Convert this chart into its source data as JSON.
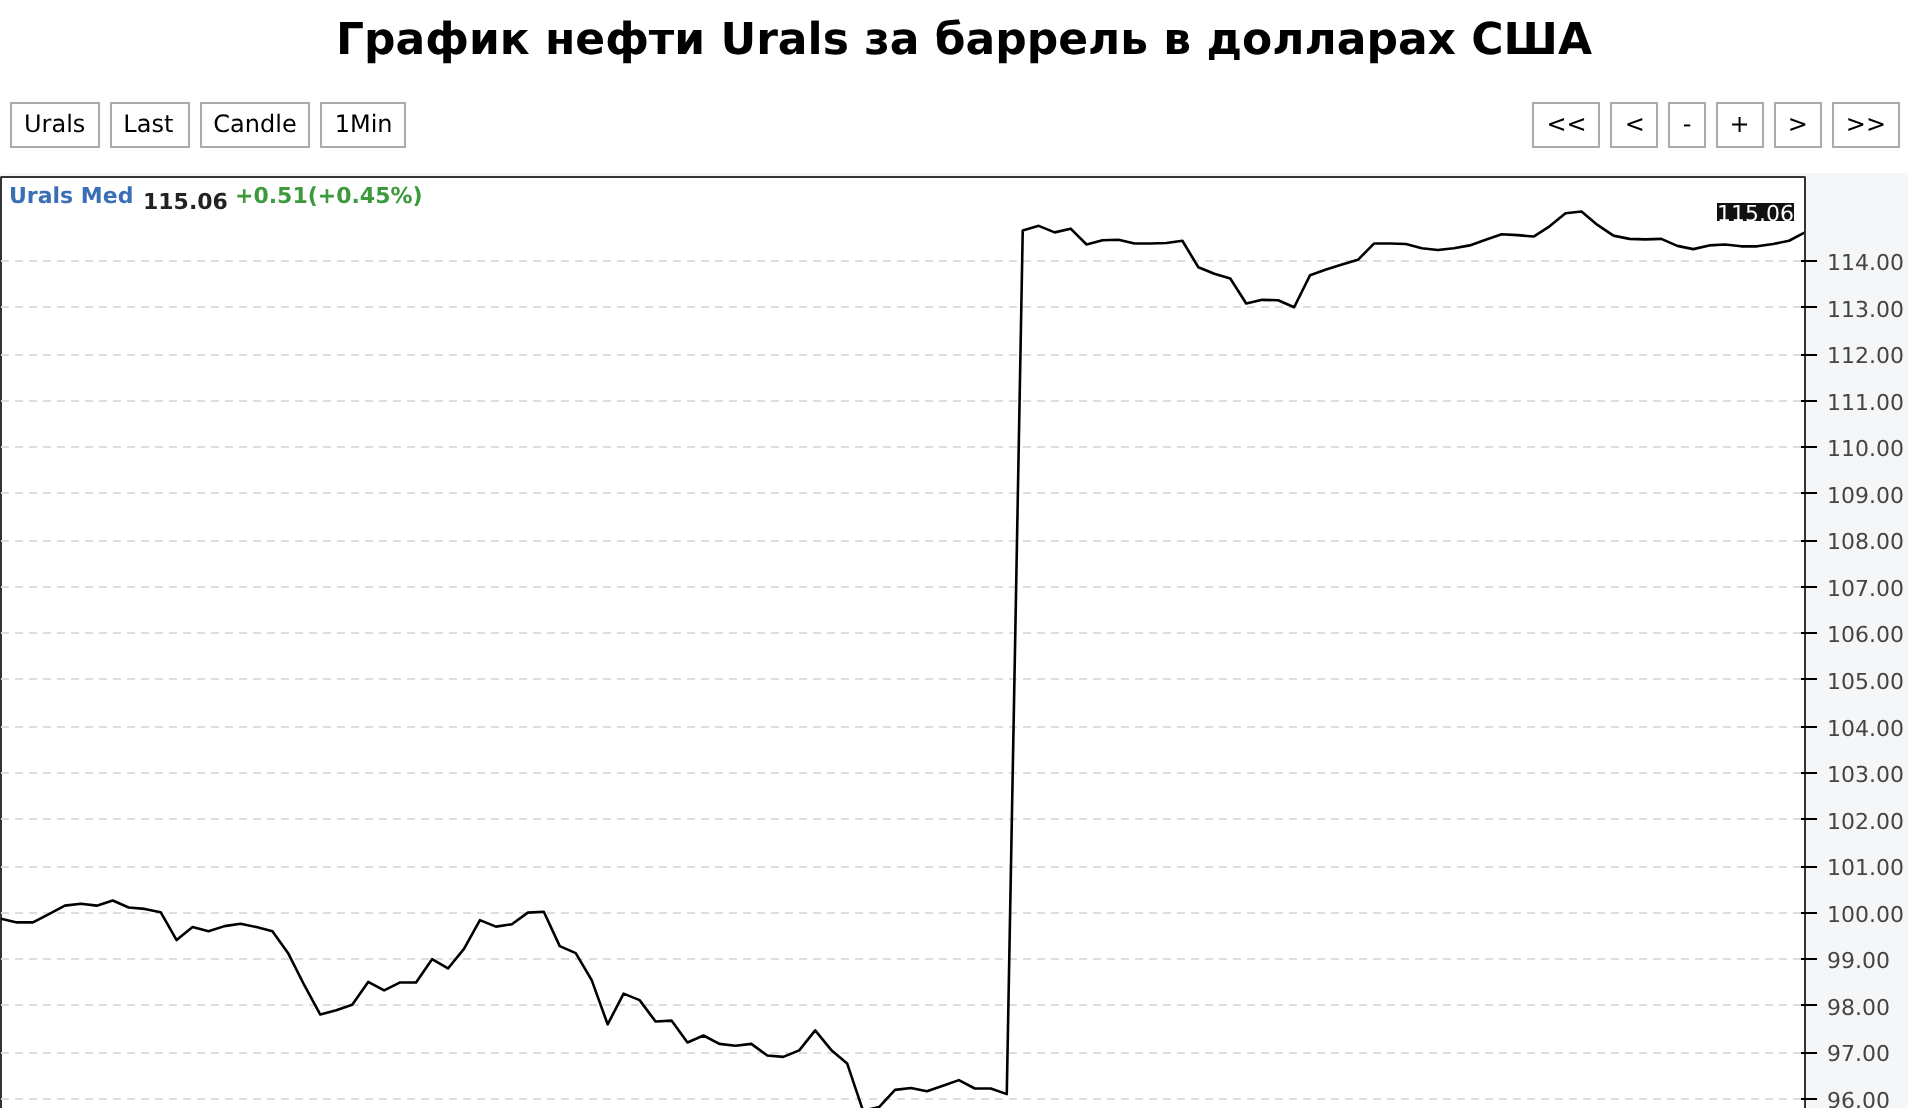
{
  "chart_data": {
    "type": "line",
    "title": "График нефти Urals за баррель в долларах США",
    "annotations": [
      "Urals",
      "Last",
      "Candle",
      "1Min",
      "<<",
      "<",
      "-",
      "+",
      ">",
      ">>",
      "Urals Med",
      "115.06",
      "+0.51(+0.45%)",
      "115.06"
    ],
    "categories": [
      null,
      null,
      null,
      null,
      null,
      null,
      null,
      null,
      null,
      null,
      null,
      null,
      null,
      null,
      null,
      null,
      null,
      null,
      null,
      null,
      null,
      null,
      null,
      null,
      null,
      null,
      null,
      null,
      null,
      null,
      null,
      null,
      null,
      null,
      null,
      null,
      null,
      null,
      null,
      null,
      null,
      null,
      null,
      null,
      null,
      null,
      null,
      null,
      null,
      null,
      null,
      null,
      null,
      null,
      null,
      null,
      null,
      null,
      null,
      null,
      null,
      null,
      null,
      null,
      null,
      null,
      null,
      null,
      null,
      null,
      null,
      null,
      null,
      null,
      null,
      null,
      null,
      null,
      null,
      null,
      null,
      null,
      null,
      null,
      null,
      null,
      null,
      null,
      null,
      null,
      null,
      null,
      null,
      null,
      null,
      null,
      null,
      null,
      null,
      null,
      null,
      null,
      null,
      null,
      null,
      null,
      null,
      null,
      null,
      null,
      null,
      null,
      null,
      null
    ],
    "series": [
      {
        "color": "#000000",
        "values": [
          99.87,
          99.79,
          99.79,
          99.97,
          100.15,
          100.19,
          100.15,
          100.26,
          100.11,
          100.08,
          100.01,
          99.41,
          99.69,
          99.6,
          99.71,
          99.76,
          99.69,
          99.6,
          99.12,
          98.44,
          97.81,
          97.9,
          98.02,
          98.51,
          98.33,
          98.5,
          98.5,
          99.0,
          98.8,
          99.22,
          99.84,
          99.7,
          99.75,
          100.0,
          100.02,
          99.28,
          99.13,
          98.55,
          97.6,
          98.26,
          98.12,
          97.66,
          97.68,
          97.21,
          97.36,
          97.18,
          97.14,
          97.18,
          96.93,
          96.9,
          97.04,
          97.47,
          97.05,
          96.76,
          95.74,
          95.82,
          96.19,
          96.23,
          96.16,
          96.28,
          96.4,
          96.22,
          96.22,
          96.1,
          114.66,
          114.76,
          114.62,
          114.7,
          114.36,
          114.45,
          114.46,
          114.38,
          114.38,
          114.39,
          114.44,
          113.87,
          113.73,
          113.63,
          113.09,
          113.17,
          113.16,
          113.01,
          113.7,
          113.82,
          113.93,
          114.03,
          114.38,
          114.38,
          114.37,
          114.28,
          114.24,
          114.28,
          114.34,
          114.46,
          114.58,
          114.56,
          114.53,
          114.75,
          115.03,
          115.07,
          114.78,
          114.55,
          114.48,
          114.47,
          114.48,
          114.33,
          114.26,
          114.34,
          114.36,
          114.32,
          114.32,
          114.37,
          114.44,
          114.62
        ]
      }
    ],
    "ylim": [
      95.35,
      115.81
    ],
    "yticks": [
      {
        "value": 96,
        "label": "96.00"
      },
      {
        "value": 97,
        "label": "97.00"
      },
      {
        "value": 98,
        "label": "98.00"
      },
      {
        "value": 99,
        "label": "99.00"
      },
      {
        "value": 100,
        "label": "100.00"
      },
      {
        "value": 101,
        "label": "101.00"
      },
      {
        "value": 102,
        "label": "102.00"
      },
      {
        "value": 103,
        "label": "103.00"
      },
      {
        "value": 104,
        "label": "104.00"
      },
      {
        "value": 105,
        "label": "105.00"
      },
      {
        "value": 106,
        "label": "106.00"
      },
      {
        "value": 107,
        "label": "107.00"
      },
      {
        "value": 108,
        "label": "108.00"
      },
      {
        "value": 109,
        "label": "109.00"
      },
      {
        "value": 110,
        "label": "110.00"
      },
      {
        "value": 111,
        "label": "111.00"
      },
      {
        "value": 112,
        "label": "112.00"
      },
      {
        "value": 113,
        "label": "113.00"
      },
      {
        "value": 114,
        "label": "114.00"
      }
    ],
    "grid": "y",
    "tick_labels": "y",
    "marker": "none",
    "line_style": "solid"
  }
}
